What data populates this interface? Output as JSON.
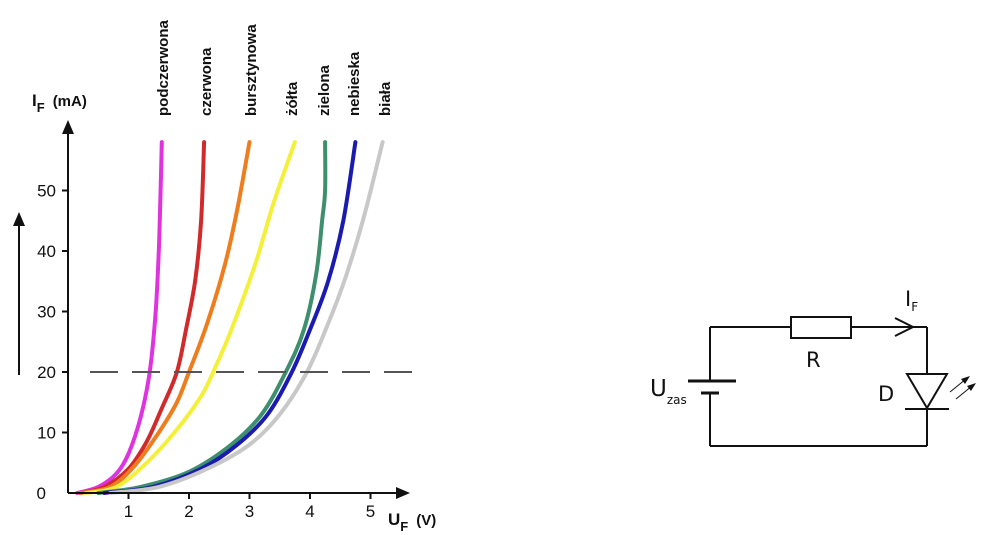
{
  "chart_data": {
    "type": "line",
    "ylabel": {
      "main": "I",
      "sub": "F",
      "unit": "(mA)"
    },
    "xlabel": {
      "main": "U",
      "sub": "F",
      "unit": "(V)"
    },
    "xlim": [
      0,
      5.5
    ],
    "ylim": [
      0,
      60
    ],
    "x_ticks": [
      {
        "value": 1,
        "label": "1"
      },
      {
        "value": 2,
        "label": "2"
      },
      {
        "value": 3,
        "label": "3"
      },
      {
        "value": 4,
        "label": "4"
      },
      {
        "value": 5,
        "label": "5"
      }
    ],
    "y_ticks": [
      {
        "value": 0,
        "label": "0"
      },
      {
        "value": 10,
        "label": "10"
      },
      {
        "value": 20,
        "label": "20"
      },
      {
        "value": 30,
        "label": "30"
      },
      {
        "value": 40,
        "label": "40"
      },
      {
        "value": 50,
        "label": "50"
      }
    ],
    "reference_line": {
      "y": 20,
      "style": "dashed"
    },
    "series": [
      {
        "name": "podczerwona",
        "color": "#e033e0",
        "points": [
          [
            0.15,
            0
          ],
          [
            0.5,
            1
          ],
          [
            0.8,
            3.2
          ],
          [
            1.0,
            6.5
          ],
          [
            1.2,
            12.5
          ],
          [
            1.35,
            20
          ],
          [
            1.45,
            30
          ],
          [
            1.5,
            40
          ],
          [
            1.53,
            50
          ],
          [
            1.55,
            58
          ]
        ]
      },
      {
        "name": "czerwona",
        "color": "#d12a2a",
        "points": [
          [
            0.2,
            0
          ],
          [
            0.6,
            1
          ],
          [
            1.0,
            4
          ],
          [
            1.3,
            8.5
          ],
          [
            1.55,
            14
          ],
          [
            1.8,
            20
          ],
          [
            1.95,
            27
          ],
          [
            2.1,
            35
          ],
          [
            2.2,
            45
          ],
          [
            2.25,
            58
          ]
        ]
      },
      {
        "name": "bursztynowa",
        "color": "#ee7d1e",
        "points": [
          [
            0.2,
            0
          ],
          [
            0.7,
            1
          ],
          [
            1.1,
            4.5
          ],
          [
            1.5,
            10
          ],
          [
            1.8,
            15
          ],
          [
            2.0,
            20
          ],
          [
            2.3,
            28
          ],
          [
            2.6,
            38
          ],
          [
            2.8,
            47
          ],
          [
            3.0,
            58
          ]
        ]
      },
      {
        "name": "żółta",
        "color": "#f4f03a",
        "points": [
          [
            0.3,
            0
          ],
          [
            0.8,
            1
          ],
          [
            1.3,
            5
          ],
          [
            1.8,
            10.5
          ],
          [
            2.2,
            16
          ],
          [
            2.4,
            20
          ],
          [
            2.7,
            27
          ],
          [
            3.1,
            38
          ],
          [
            3.4,
            48
          ],
          [
            3.75,
            58
          ]
        ]
      },
      {
        "name": "zielona",
        "color": "#3e8f6e",
        "points": [
          [
            0.5,
            0
          ],
          [
            1.2,
            1
          ],
          [
            2.0,
            3.5
          ],
          [
            2.7,
            8
          ],
          [
            3.2,
            13
          ],
          [
            3.6,
            20
          ],
          [
            3.9,
            27
          ],
          [
            4.1,
            36
          ],
          [
            4.2,
            45
          ],
          [
            4.25,
            50
          ],
          [
            4.25,
            58
          ]
        ]
      },
      {
        "name": "niebieska",
        "color": "#1b1bb0",
        "points": [
          [
            0.6,
            0
          ],
          [
            1.4,
            1
          ],
          [
            2.2,
            4
          ],
          [
            2.8,
            8
          ],
          [
            3.3,
            13
          ],
          [
            3.7,
            20
          ],
          [
            4.0,
            27
          ],
          [
            4.3,
            35
          ],
          [
            4.55,
            45
          ],
          [
            4.75,
            58
          ]
        ]
      },
      {
        "name": "biała",
        "color": "#c8c8c8",
        "points": [
          [
            0.7,
            0
          ],
          [
            1.5,
            1
          ],
          [
            2.3,
            4
          ],
          [
            3.0,
            8
          ],
          [
            3.5,
            13
          ],
          [
            3.95,
            20
          ],
          [
            4.3,
            28
          ],
          [
            4.6,
            36
          ],
          [
            4.9,
            46
          ],
          [
            5.2,
            58
          ]
        ]
      }
    ]
  },
  "labels": {
    "podczerwona": "podczerwona",
    "czerwona": "czerwona",
    "bursztynowa": "bursztynowa",
    "zolta": "żółta",
    "zielona": "zielona",
    "nebieska": "nebieska",
    "biala": "biała"
  },
  "circuit": {
    "current_label": "I",
    "current_sub": "F",
    "resistor_label": "R",
    "diode_label": "D",
    "source_label": "U",
    "source_sub": "zas"
  }
}
